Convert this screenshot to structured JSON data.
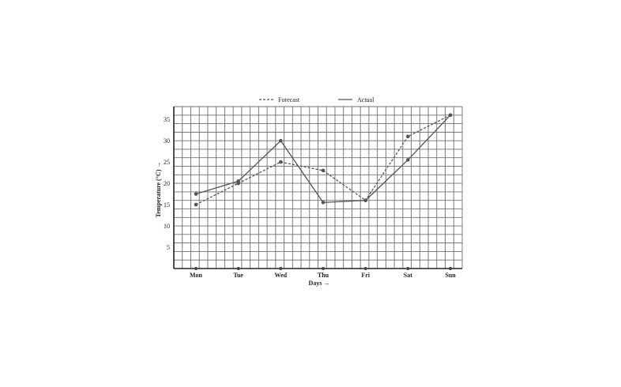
{
  "chart_data": {
    "type": "line",
    "title": "",
    "xlabel": "Days →",
    "ylabel": "Temperature (°C) →",
    "categories": [
      "Mon",
      "Tue",
      "Wed",
      "Thu",
      "Fri",
      "Sat",
      "Sun"
    ],
    "ylim": [
      0,
      38
    ],
    "yticks": [
      5,
      10,
      15,
      20,
      25,
      30,
      35
    ],
    "grid": true,
    "legend_position": "top",
    "series": [
      {
        "name": "Forecast",
        "style": "dashed",
        "color": "#555555",
        "values": [
          15,
          20,
          25,
          23,
          16,
          31,
          36
        ]
      },
      {
        "name": "Actual",
        "style": "solid",
        "color": "#555555",
        "values": [
          17.5,
          20.5,
          30,
          15.5,
          16,
          25.5,
          36
        ]
      }
    ]
  }
}
